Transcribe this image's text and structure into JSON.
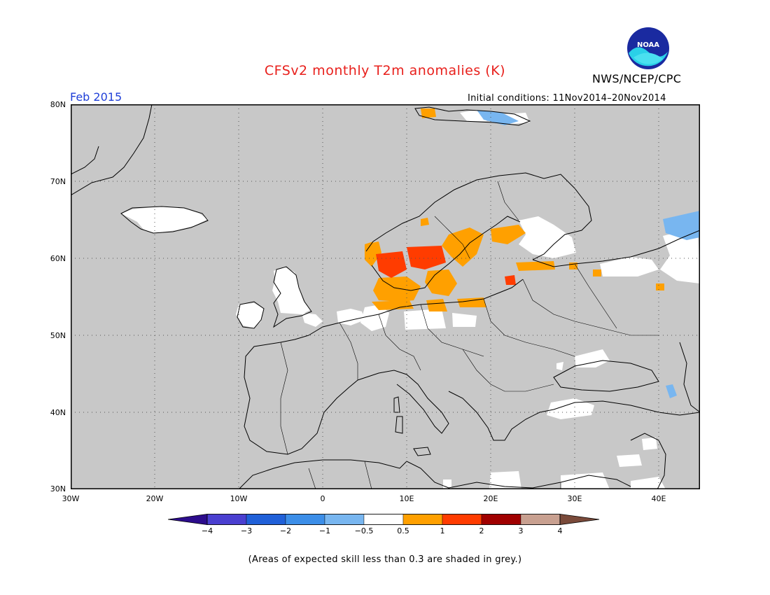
{
  "title": "CFSv2 monthly T2m anomalies (K)",
  "agency": "NWS/NCEP/CPC",
  "logo_text": "NOAA",
  "month": "Feb 2015",
  "initial_conditions": "Initial conditions: 11Nov2014–20Nov2014",
  "note": "(Areas of expected skill less than 0.3 are shaded in grey.)",
  "map": {
    "lon_range": [
      -30,
      45
    ],
    "lat_range": [
      30,
      80
    ],
    "lat_labels": [
      "80N",
      "70N",
      "60N",
      "50N",
      "40N",
      "30N"
    ],
    "lon_labels": [
      "30W",
      "20W",
      "10W",
      "0",
      "10E",
      "20E",
      "30E",
      "40E"
    ],
    "background_color": "#c8c8c8",
    "grid": "dotted"
  },
  "colorbar": {
    "labels": [
      "−4",
      "−3",
      "−2",
      "−1",
      "−0.5",
      "0.5",
      "1",
      "2",
      "3",
      "4"
    ],
    "colors": [
      "#2c0c8c",
      "#4a3fd0",
      "#2060d8",
      "#3c8ee8",
      "#78b6f0",
      "#ffffff",
      "#ffa000",
      "#ff3c00",
      "#a00000",
      "#c8a090",
      "#7a4a3a"
    ]
  }
}
